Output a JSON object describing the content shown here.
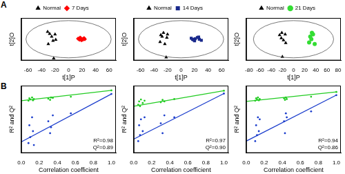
{
  "panel_labels": [
    "A",
    "B"
  ],
  "chart_data": [
    {
      "type": "scatter",
      "x_label": "t[1]P",
      "y_label": "t[2]O",
      "legend": "top",
      "tick_labels": "x",
      "grid": false,
      "xlim": [
        -70,
        70
      ],
      "xticks": [
        -60,
        -40,
        -20,
        0,
        20,
        40,
        60
      ],
      "ylim": [
        -40,
        40
      ],
      "ellipse": {
        "center": [
          0,
          0
        ],
        "x_radius": 63,
        "y_radius": 35
      },
      "series": [
        {
          "name": "Normal",
          "color": "#000000",
          "marker": "triangle",
          "x": [
            -25,
            -20,
            -28,
            -31,
            -19,
            -23,
            -30,
            -22
          ],
          "values": [
            5,
            9,
            10,
            14,
            -1,
            -3,
            -9,
            -36
          ]
        },
        {
          "name": "7 Days",
          "color": "#ff0000",
          "marker": "diamond",
          "x": [
            14,
            16,
            18,
            20,
            22,
            19,
            24,
            17,
            21,
            23
          ],
          "values": [
            1,
            -1,
            2,
            0,
            1,
            -2,
            0,
            3,
            -1,
            2
          ]
        }
      ]
    },
    {
      "type": "scatter",
      "x_label": "t[1]P",
      "y_label": "t[2]O",
      "legend": "top",
      "tick_labels": "x",
      "grid": false,
      "xlim": [
        -70,
        70
      ],
      "xticks": [
        -60,
        -40,
        -20,
        0,
        20,
        40,
        60
      ],
      "ylim": [
        -40,
        40
      ],
      "ellipse": {
        "center": [
          0,
          0
        ],
        "x_radius": 63,
        "y_radius": 35
      },
      "series": [
        {
          "name": "Normal",
          "color": "#000000",
          "marker": "triangle",
          "x": [
            -26,
            -20,
            -28,
            -21,
            -31,
            -24,
            -30,
            -22
          ],
          "values": [
            12,
            9,
            5,
            3,
            -5,
            -9,
            8,
            -34
          ]
        },
        {
          "name": "14 Days",
          "color": "#1a2a8c",
          "marker": "square",
          "x": [
            15,
            18,
            21,
            24,
            27,
            30,
            20,
            26,
            17
          ],
          "values": [
            2,
            -1,
            1,
            3,
            0,
            -2,
            -3,
            4,
            0
          ]
        }
      ]
    },
    {
      "type": "scatter",
      "x_label": "t[1]P",
      "y_label": "t[2]O",
      "legend": "top",
      "tick_labels": "x",
      "grid": false,
      "xlim": [
        -85,
        85
      ],
      "xticks": [
        -80,
        -60,
        -40,
        -20,
        0,
        20,
        40,
        60,
        80
      ],
      "ylim": [
        -40,
        40
      ],
      "ellipse": {
        "center": [
          0,
          0
        ],
        "x_radius": 72,
        "y_radius": 35
      },
      "series": [
        {
          "name": "Normal",
          "color": "#000000",
          "marker": "triangle",
          "x": [
            -21,
            -15,
            -25,
            -18,
            -14,
            -22,
            -20
          ],
          "values": [
            12,
            9,
            8,
            -2,
            -7,
            2,
            -33
          ]
        },
        {
          "name": "21 Days",
          "color": "#33dd33",
          "marker": "circle",
          "x": [
            30,
            35,
            32,
            28,
            38,
            33
          ],
          "values": [
            5,
            9,
            0,
            -6,
            -9,
            12
          ]
        }
      ]
    },
    {
      "type": "scatter",
      "x_label": "Correlation coefficient",
      "y_label": "R² and Q²",
      "tick_labels": "x",
      "grid": false,
      "xlim": [
        0,
        1.05
      ],
      "xticks": [
        {
          "value": 0,
          "label": "0.0"
        },
        {
          "value": 0.2,
          "label": "0.2"
        },
        {
          "value": 0.4,
          "label": "0.4"
        },
        {
          "value": 0.6,
          "label": "0.6"
        },
        {
          "value": 0.8,
          "label": "0.8"
        },
        {
          "value": 1,
          "label": "1.0"
        }
      ],
      "ylim": [
        -0.6,
        1.1
      ],
      "annotations": [
        "R²=0.98",
        "Q²=0.89"
      ],
      "series": [
        {
          "color": "#22cc22",
          "marker": "circle",
          "x": [
            0.08,
            0.09,
            0.1,
            0.12,
            0.13,
            0.14,
            0.3,
            0.32,
            0.33,
            0.35,
            0.55,
            1.0
          ],
          "values": [
            0.72,
            0.78,
            0.75,
            0.8,
            0.73,
            0.76,
            0.77,
            0.74,
            0.8,
            0.79,
            0.82,
            0.98
          ]
        },
        {
          "color": "#1a3ccc",
          "marker": "circle",
          "x": [
            0.08,
            0.09,
            0.1,
            0.12,
            0.13,
            0.14,
            0.3,
            0.32,
            0.33,
            0.35,
            0.55,
            1.0
          ],
          "values": [
            -0.35,
            0.1,
            -0.2,
            0.3,
            -0.05,
            -0.4,
            0.2,
            -0.1,
            0.05,
            0.35,
            0.4,
            0.89
          ]
        },
        {
          "type": "line",
          "color": "#22cc22",
          "x": [
            0,
            1
          ],
          "values": [
            0.72,
            0.98
          ]
        },
        {
          "type": "line",
          "color": "#1a3ccc",
          "x": [
            0,
            1
          ],
          "values": [
            -0.32,
            0.89
          ]
        }
      ]
    },
    {
      "type": "scatter",
      "x_label": "Correlation coefficient",
      "y_label": "R² and Q²",
      "tick_labels": "x",
      "grid": false,
      "xlim": [
        0,
        1.05
      ],
      "xticks": [
        {
          "value": 0,
          "label": "0.0"
        },
        {
          "value": 0.2,
          "label": "0.2"
        },
        {
          "value": 0.4,
          "label": "0.4"
        },
        {
          "value": 0.6,
          "label": "0.6"
        },
        {
          "value": 0.8,
          "label": "0.8"
        },
        {
          "value": 1,
          "label": "1.0"
        }
      ],
      "ylim": [
        -0.6,
        1.1
      ],
      "annotations": [
        "R²=0.97",
        "Q²=0.90"
      ],
      "series": [
        {
          "color": "#22cc22",
          "marker": "circle",
          "x": [
            0.05,
            0.06,
            0.07,
            0.08,
            0.1,
            0.12,
            0.3,
            0.32,
            0.34,
            0.45,
            1.0
          ],
          "values": [
            0.62,
            0.7,
            0.58,
            0.75,
            0.66,
            0.72,
            0.68,
            0.74,
            0.7,
            0.76,
            0.97
          ]
        },
        {
          "color": "#1a3ccc",
          "marker": "circle",
          "x": [
            0.05,
            0.06,
            0.07,
            0.08,
            0.1,
            0.12,
            0.3,
            0.32,
            0.34,
            0.45,
            1.0
          ],
          "values": [
            -0.3,
            0.1,
            -0.15,
            0.25,
            -0.05,
            0.3,
            0.15,
            -0.1,
            0.35,
            0.3,
            0.9
          ]
        },
        {
          "type": "line",
          "color": "#22cc22",
          "x": [
            0,
            1
          ],
          "values": [
            0.58,
            0.97
          ]
        },
        {
          "type": "line",
          "color": "#1a3ccc",
          "x": [
            0,
            1
          ],
          "values": [
            -0.25,
            0.9
          ]
        }
      ]
    },
    {
      "type": "scatter",
      "x_label": "Correlation coefficient",
      "y_label": "R² and Q²",
      "tick_labels": "x",
      "grid": false,
      "xlim": [
        0,
        1.05
      ],
      "xticks": [
        {
          "value": 0,
          "label": "0.0"
        },
        {
          "value": 0.2,
          "label": "0.2"
        },
        {
          "value": 0.4,
          "label": "0.4"
        },
        {
          "value": 0.6,
          "label": "0.6"
        },
        {
          "value": 0.8,
          "label": "0.8"
        },
        {
          "value": 1,
          "label": "1.0"
        }
      ],
      "ylim": [
        -0.6,
        1.1
      ],
      "annotations": [
        "R²=0.94",
        "Q²=0.86"
      ],
      "series": [
        {
          "color": "#22cc22",
          "marker": "circle",
          "x": [
            0.1,
            0.11,
            0.12,
            0.13,
            0.14,
            0.15,
            0.42,
            0.43,
            0.44,
            0.45,
            0.72,
            1.0
          ],
          "values": [
            0.72,
            0.78,
            0.75,
            0.8,
            0.73,
            0.76,
            0.78,
            0.74,
            0.8,
            0.76,
            0.82,
            0.94
          ]
        },
        {
          "color": "#1a3ccc",
          "marker": "circle",
          "x": [
            0.1,
            0.11,
            0.12,
            0.13,
            0.14,
            0.15,
            0.42,
            0.43,
            0.44,
            0.45,
            0.72,
            1.0
          ],
          "values": [
            -0.3,
            0.1,
            -0.15,
            0.3,
            -0.05,
            0.25,
            0.2,
            -0.1,
            0.4,
            0.3,
            0.45,
            0.86
          ]
        },
        {
          "type": "line",
          "color": "#22cc22",
          "x": [
            0,
            1
          ],
          "values": [
            0.7,
            0.94
          ]
        },
        {
          "type": "line",
          "color": "#1a3ccc",
          "x": [
            0,
            1
          ],
          "values": [
            -0.3,
            0.86
          ]
        }
      ]
    }
  ]
}
